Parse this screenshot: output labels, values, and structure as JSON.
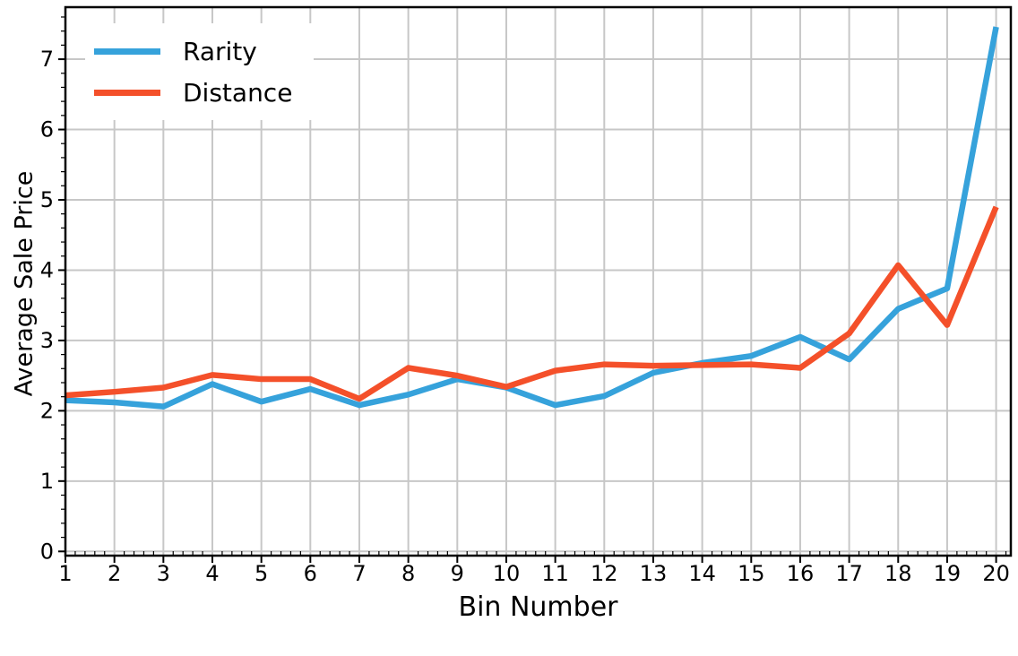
{
  "figure": {
    "background": "#ffffff",
    "grid_color": "#c7c7c7",
    "axis_color": "#000000",
    "tick_label_color": "#000000"
  },
  "chart_data": {
    "type": "line",
    "title": "",
    "xlabel": "Bin Number",
    "ylabel": "Average Sale Price",
    "grid": true,
    "legend_position": "upper-left",
    "xlim": [
      1,
      20.3
    ],
    "ylim": [
      -0.06,
      7.74
    ],
    "x_ticks": [
      1,
      2,
      3,
      4,
      5,
      6,
      7,
      8,
      9,
      10,
      11,
      12,
      13,
      14,
      15,
      16,
      17,
      18,
      19,
      20
    ],
    "y_ticks": [
      0,
      1,
      2,
      3,
      4,
      5,
      6,
      7
    ],
    "minor_tick_step": 0.2,
    "x": [
      1,
      2,
      3,
      4,
      5,
      6,
      7,
      8,
      9,
      10,
      11,
      12,
      13,
      14,
      15,
      16,
      17,
      18,
      19,
      20
    ],
    "series": [
      {
        "name": "Rarity",
        "color": "#36a2db",
        "values": [
          2.15,
          2.12,
          2.06,
          2.38,
          2.13,
          2.31,
          2.08,
          2.23,
          2.45,
          2.33,
          2.08,
          2.21,
          2.54,
          2.68,
          2.78,
          3.05,
          2.73,
          3.45,
          3.74,
          7.46
        ]
      },
      {
        "name": "Distance",
        "color": "#f4502a",
        "values": [
          2.22,
          2.27,
          2.33,
          2.51,
          2.45,
          2.45,
          2.17,
          2.61,
          2.5,
          2.34,
          2.57,
          2.66,
          2.64,
          2.65,
          2.66,
          2.61,
          3.1,
          4.07,
          3.22,
          4.9
        ]
      }
    ]
  }
}
